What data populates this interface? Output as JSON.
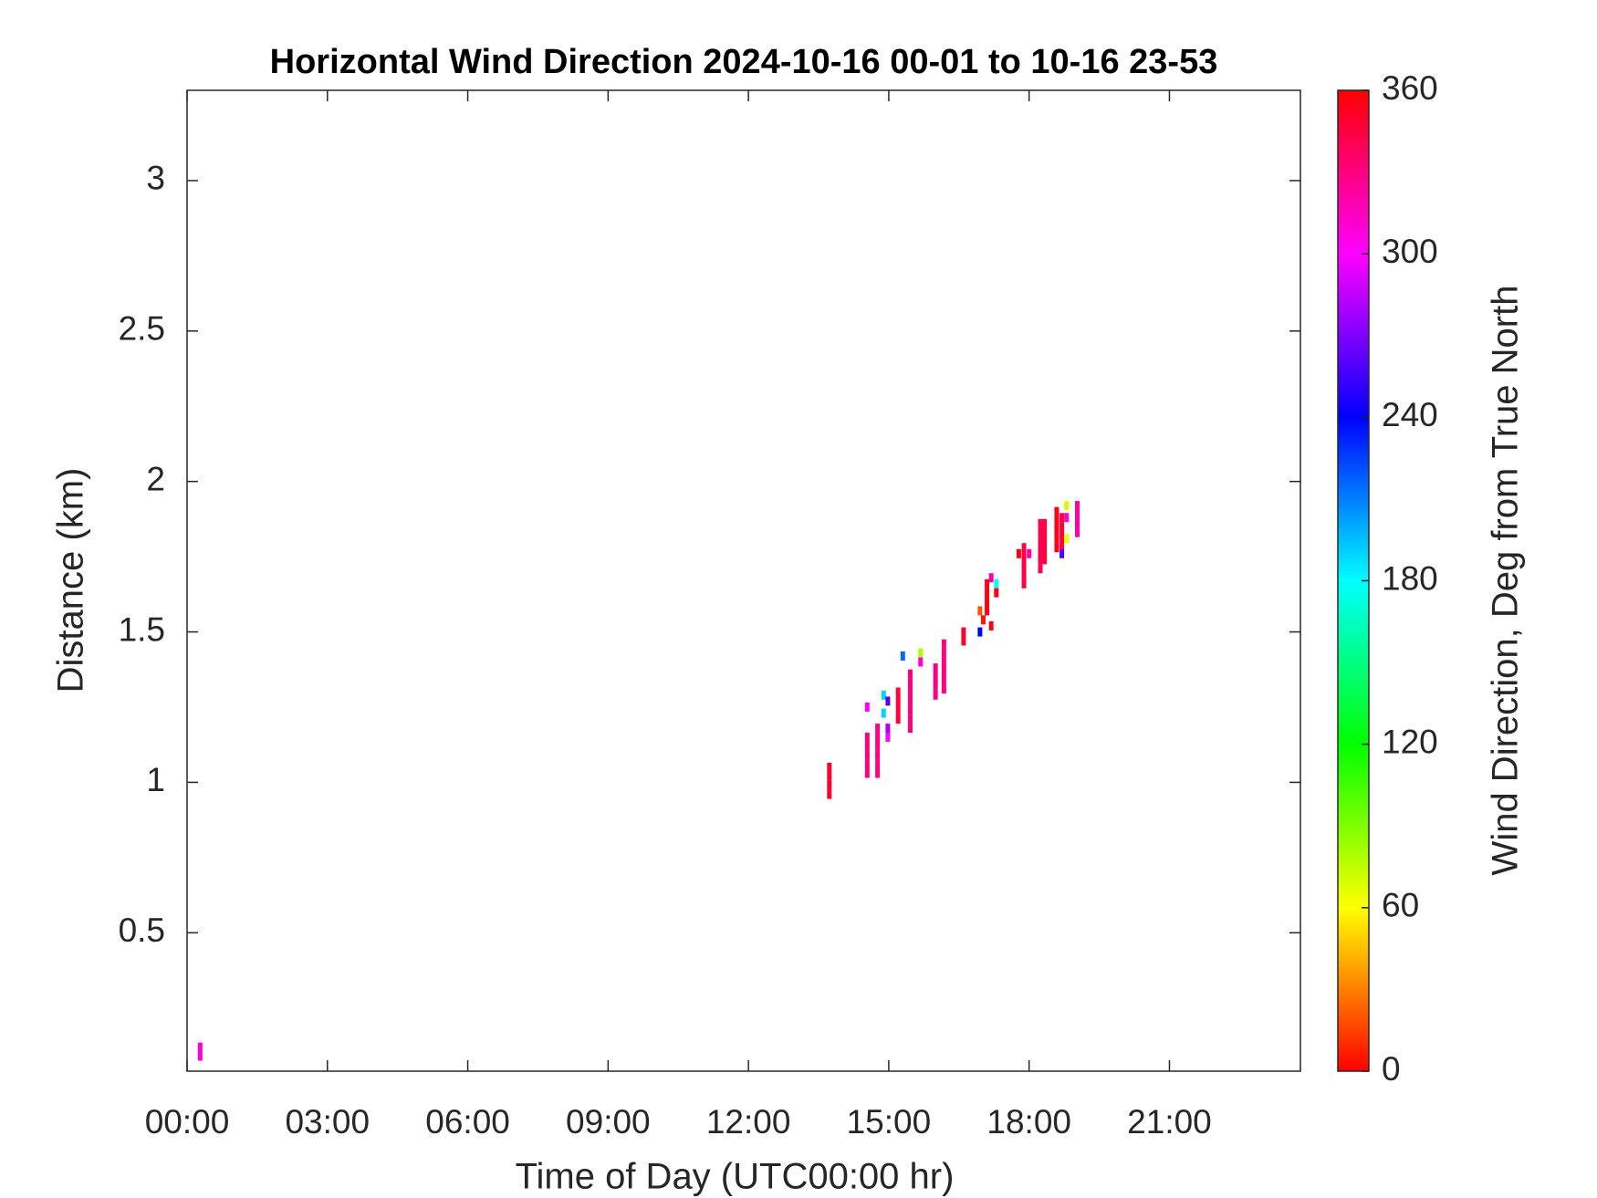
{
  "chart_data": {
    "type": "heatmap",
    "title": "Horizontal Wind Direction 2024-10-16 00-01 to 10-16 23-53",
    "x_label": "Time of Day (UTC00:00 hr)",
    "y_label": "Distance (km)",
    "colorbar_label": "Wind Direction, Deg from True North",
    "colormap": "hsv",
    "xlim": [
      0,
      23.8
    ],
    "xticks": [
      {
        "value": 0,
        "label": "00:00"
      },
      {
        "value": 3,
        "label": "03:00"
      },
      {
        "value": 6,
        "label": "06:00"
      },
      {
        "value": 9,
        "label": "09:00"
      },
      {
        "value": 12,
        "label": "12:00"
      },
      {
        "value": 15,
        "label": "15:00"
      },
      {
        "value": 18,
        "label": "18:00"
      },
      {
        "value": 21,
        "label": "21:00"
      }
    ],
    "ylim": [
      0.04,
      3.3
    ],
    "yticks": [
      0.5,
      1,
      1.5,
      2,
      2.5,
      3
    ],
    "clim": [
      0,
      360
    ],
    "cticks": [
      0,
      60,
      120,
      180,
      240,
      300,
      360
    ],
    "x": [
      0.28,
      0.28,
      13.73,
      13.73,
      13.73,
      13.73,
      14.54,
      14.54,
      14.54,
      14.54,
      14.54,
      14.54,
      14.76,
      14.76,
      14.76,
      14.76,
      14.76,
      14.76,
      14.89,
      14.89,
      14.98,
      14.98,
      14.98,
      15.2,
      15.2,
      15.2,
      15.2,
      15.3,
      15.46,
      15.46,
      15.46,
      15.46,
      15.46,
      15.46,
      15.46,
      15.68,
      15.68,
      16.0,
      16.0,
      16.0,
      16.0,
      16.18,
      16.18,
      16.18,
      16.18,
      16.18,
      16.18,
      16.6,
      16.6,
      16.95,
      16.95,
      17.02,
      17.1,
      17.1,
      17.1,
      17.1,
      17.19,
      17.19,
      17.3,
      17.3,
      17.78,
      17.89,
      17.89,
      17.89,
      17.89,
      17.89,
      18.0,
      18.24,
      18.24,
      18.24,
      18.24,
      18.24,
      18.24,
      18.33,
      18.33,
      18.33,
      18.33,
      18.33,
      18.59,
      18.59,
      18.59,
      18.59,
      18.59,
      18.7,
      18.7,
      18.7,
      18.7,
      18.7,
      18.8,
      18.8,
      18.8,
      19.03,
      19.03,
      19.03,
      19.03
    ],
    "y": [
      0.09,
      0.12,
      0.96,
      0.99,
      1.02,
      1.05,
      1.25,
      1.03,
      1.06,
      1.09,
      1.12,
      1.15,
      1.03,
      1.06,
      1.09,
      1.12,
      1.15,
      1.18,
      1.23,
      1.29,
      1.27,
      1.18,
      1.15,
      1.21,
      1.24,
      1.27,
      1.3,
      1.42,
      1.18,
      1.21,
      1.24,
      1.27,
      1.3,
      1.33,
      1.36,
      1.43,
      1.4,
      1.29,
      1.32,
      1.35,
      1.38,
      1.31,
      1.34,
      1.37,
      1.4,
      1.43,
      1.46,
      1.47,
      1.5,
      1.5,
      1.57,
      1.54,
      1.57,
      1.6,
      1.63,
      1.66,
      1.52,
      1.68,
      1.66,
      1.63,
      1.76,
      1.66,
      1.69,
      1.72,
      1.75,
      1.78,
      1.76,
      1.71,
      1.74,
      1.77,
      1.8,
      1.83,
      1.86,
      1.74,
      1.77,
      1.8,
      1.83,
      1.86,
      1.78,
      1.81,
      1.84,
      1.87,
      1.9,
      1.79,
      1.82,
      1.85,
      1.88,
      1.76,
      1.92,
      1.88,
      1.81,
      1.83,
      1.86,
      1.89,
      1.92
    ],
    "values": [
      310,
      310,
      350,
      350,
      350,
      350,
      300,
      330,
      330,
      330,
      330,
      330,
      330,
      330,
      330,
      330,
      330,
      330,
      190,
      190,
      260,
      280,
      300,
      345,
      345,
      345,
      345,
      215,
      330,
      330,
      330,
      330,
      330,
      330,
      330,
      80,
      310,
      330,
      330,
      330,
      330,
      330,
      330,
      330,
      330,
      330,
      330,
      350,
      350,
      240,
      20,
      5,
      355,
      355,
      355,
      355,
      355,
      320,
      180,
      355,
      355,
      345,
      345,
      345,
      345,
      345,
      320,
      340,
      340,
      340,
      340,
      340,
      340,
      345,
      345,
      345,
      345,
      345,
      355,
      355,
      355,
      355,
      355,
      345,
      345,
      345,
      345,
      260,
      70,
      310,
      65,
      320,
      320,
      320,
      320
    ]
  }
}
